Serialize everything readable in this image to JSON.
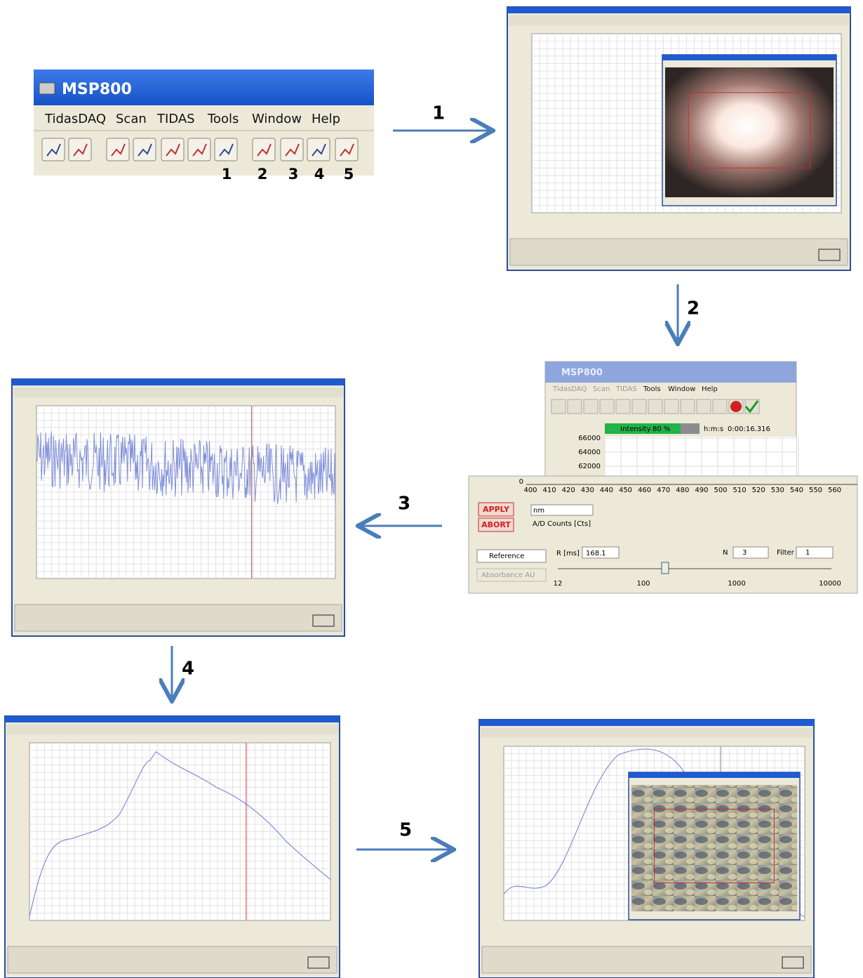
{
  "main_window": {
    "title": "MSP800",
    "menu": [
      "TidasDAQ",
      "Scan",
      "TIDAS",
      "Tools",
      "Window",
      "Help"
    ],
    "toolbar_numbers": [
      "1",
      "2",
      "3",
      "4",
      "5"
    ]
  },
  "steps": [
    "1",
    "2",
    "3",
    "4",
    "5"
  ],
  "detail_panel": {
    "title": "MSP800",
    "menu": [
      "TidasDAQ",
      "Scan",
      "TIDAS",
      "Tools",
      "Window",
      "Help"
    ],
    "intensity_label": "Intensity",
    "intensity_value": "80 %",
    "time_label": "h:m:s",
    "time_value": "0:00:16.316",
    "y_ticks": [
      "66000",
      "64000",
      "62000",
      "0"
    ],
    "x_ticks": [
      "400",
      "410",
      "420",
      "430",
      "440",
      "450",
      "460",
      "470",
      "480",
      "490",
      "500",
      "510",
      "520",
      "530",
      "540",
      "550",
      "560"
    ],
    "apply": "APPLY",
    "abort": "ABORT",
    "unit": "nm",
    "counts": "A/D Counts [Cts]",
    "mode": "Reference",
    "mode2": "Absorbance AU",
    "r_label": "R [ms]",
    "r_value": "168.1",
    "n_label": "N",
    "n_value": "3",
    "filter_label": "Filter",
    "filter_value": "1",
    "slider_ticks": [
      "12",
      "100",
      "1000",
      "10000"
    ]
  }
}
